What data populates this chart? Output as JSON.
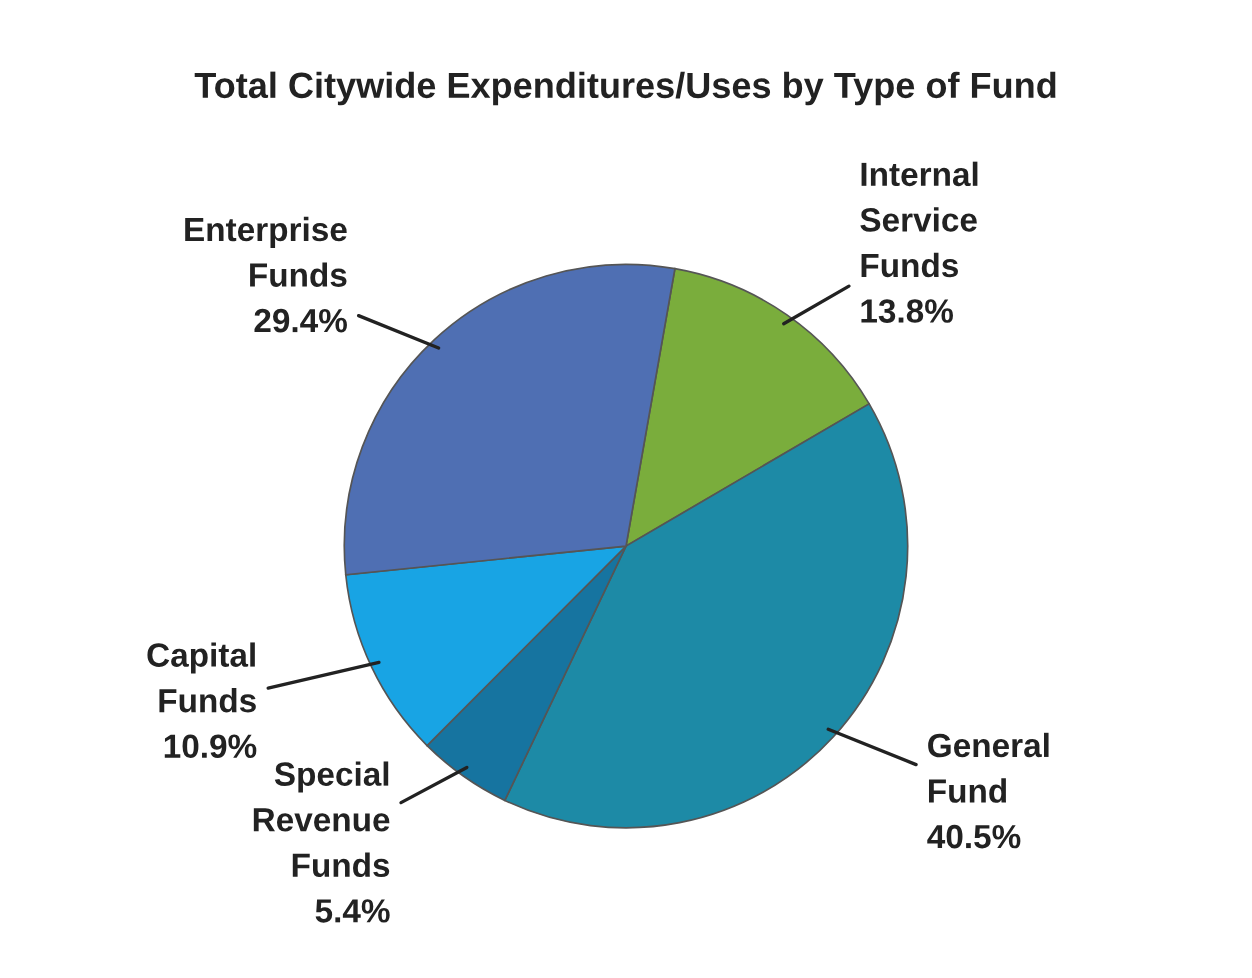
{
  "chart_data": {
    "type": "pie",
    "title": "Total Citywide Expenditures/Uses by Type of Fund",
    "categories": [
      "Internal Service Funds",
      "General Fund",
      "Special Revenue Funds",
      "Capital Funds",
      "Enterprise Funds"
    ],
    "values": [
      13.8,
      40.5,
      5.4,
      10.9,
      29.4
    ],
    "colors": [
      "#7aad3c",
      "#1d8aa6",
      "#1674a0",
      "#18a4e4",
      "#4f6fb3"
    ],
    "value_labels": [
      "13.8%",
      "40.5%",
      "5.4%",
      "10.9%",
      "29.4%"
    ]
  }
}
